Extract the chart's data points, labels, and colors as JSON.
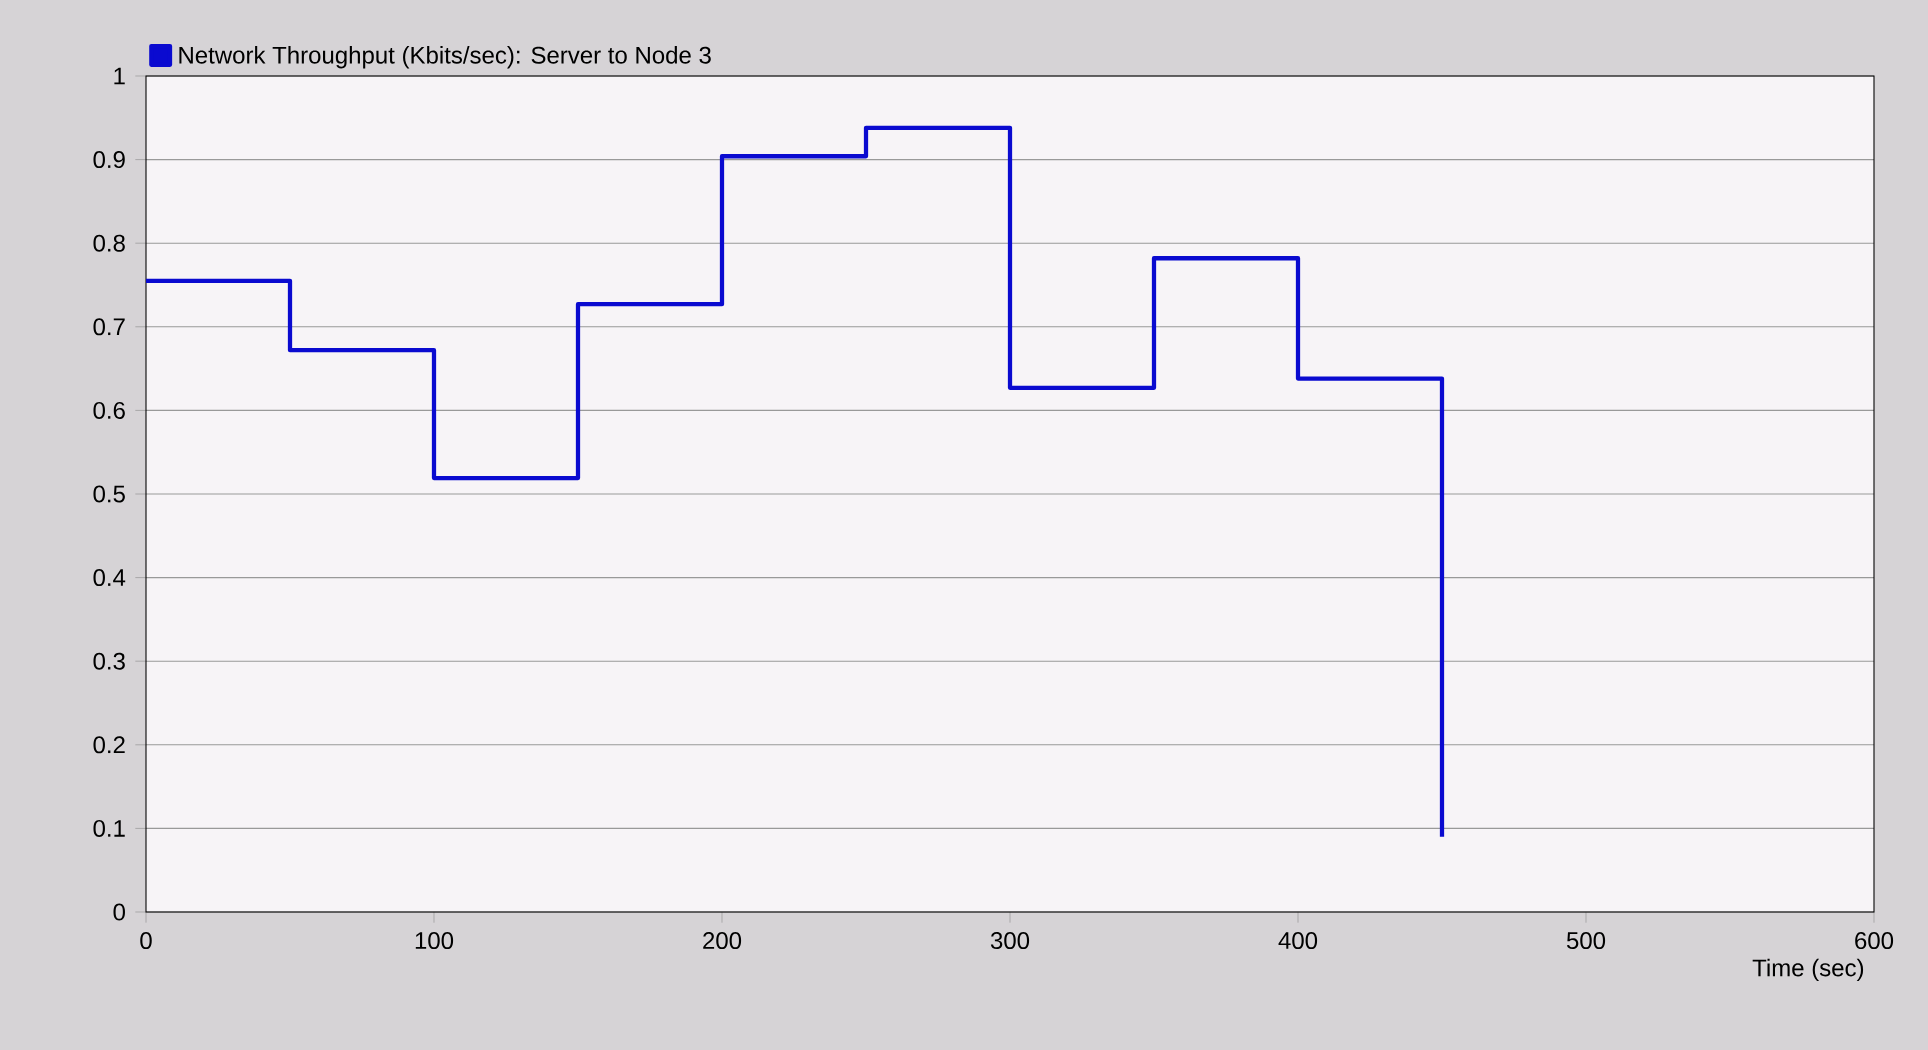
{
  "chart_data": {
    "type": "step",
    "xlabel": "Time (sec)",
    "legend": "top left",
    "grid": "y",
    "line_style": "solid",
    "x": [
      0,
      50,
      100,
      150,
      200,
      250,
      300,
      350,
      400,
      450
    ],
    "series": [
      {
        "name": "Network Throughput (Kbits/sec): Server to Node 3",
        "color": "#0a0ad0",
        "values": [
          0.755,
          0.672,
          0.519,
          0.727,
          0.904,
          0.938,
          0.627,
          0.782,
          0.638,
          0.09
        ]
      }
    ],
    "xlim": [
      0,
      600
    ],
    "ylim": [
      0,
      1
    ],
    "xticks": [
      0,
      100,
      200,
      300,
      400,
      500,
      600
    ],
    "yticks": [
      0,
      0.1,
      0.2,
      0.3,
      0.4,
      0.5,
      0.6,
      0.7,
      0.8,
      0.9,
      1
    ]
  }
}
